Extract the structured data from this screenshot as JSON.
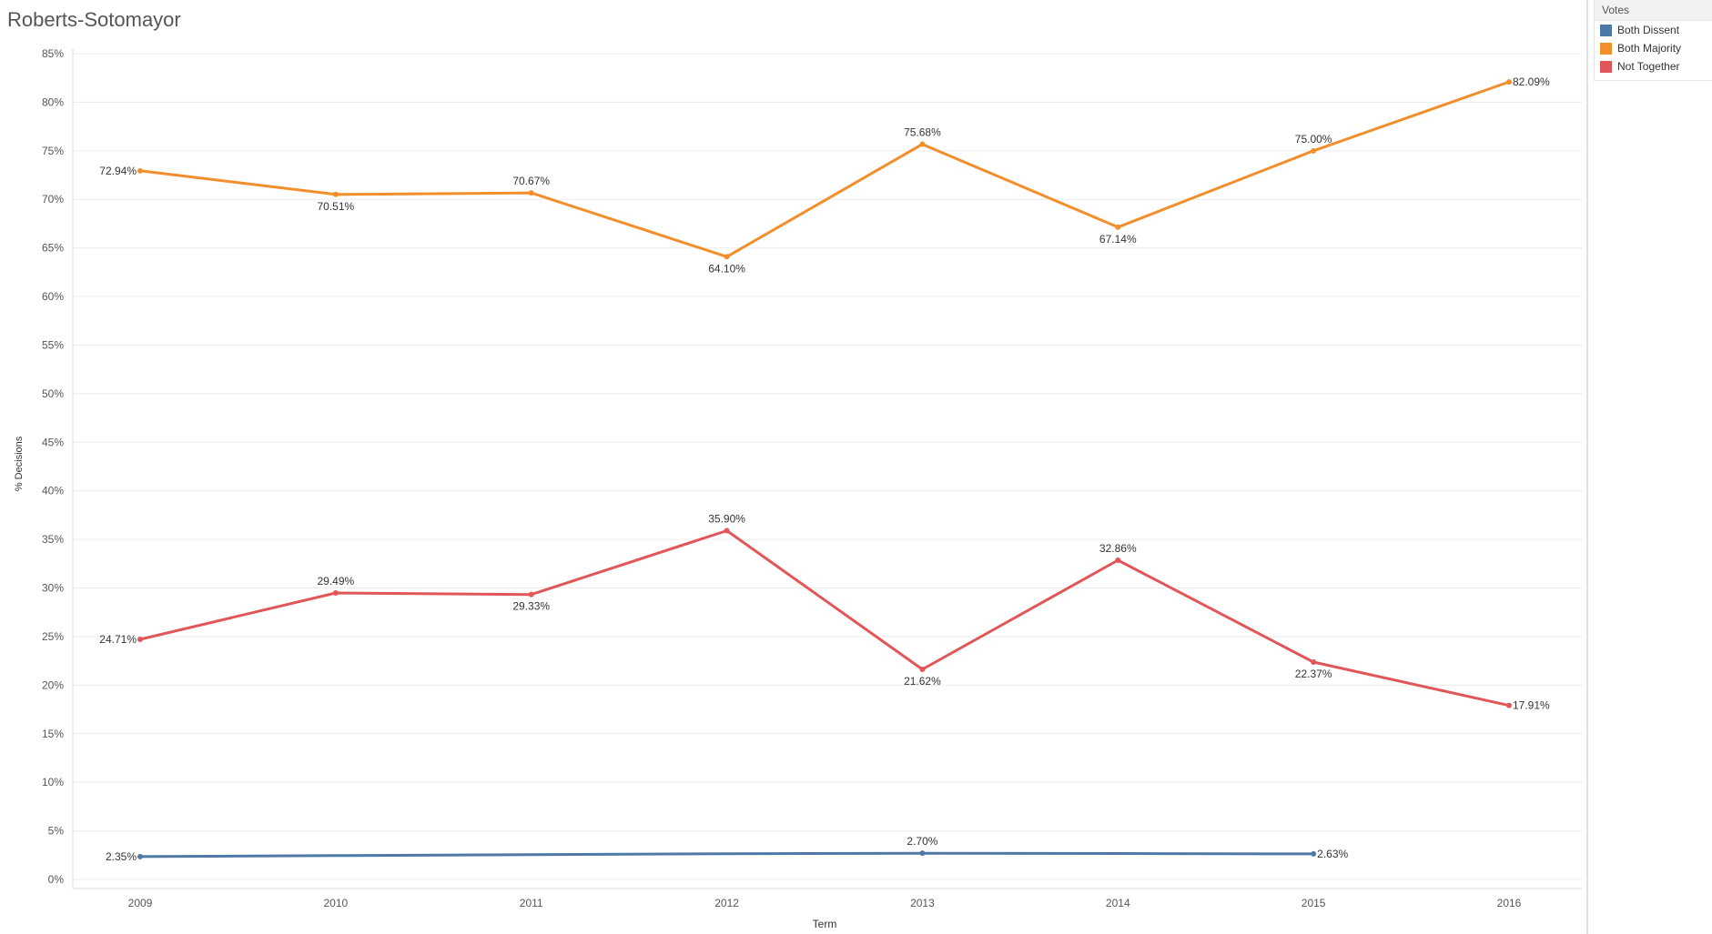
{
  "title": "Roberts-Sotomayor",
  "legend": {
    "title": "Votes",
    "items": [
      {
        "label": "Both Dissent",
        "color": "#4e79a7"
      },
      {
        "label": "Both Majority",
        "color": "#f28e2b"
      },
      {
        "label": "Not Together",
        "color": "#e15759"
      }
    ]
  },
  "chart_data": {
    "type": "line",
    "title": "Roberts-Sotomayor",
    "xlabel": "Term",
    "ylabel": "% Decisions",
    "ylim": [
      0,
      85
    ],
    "yticks": [
      "0%",
      "5%",
      "10%",
      "15%",
      "20%",
      "25%",
      "30%",
      "35%",
      "40%",
      "45%",
      "50%",
      "55%",
      "60%",
      "65%",
      "70%",
      "75%",
      "80%",
      "85%"
    ],
    "categories": [
      "2009",
      "2010",
      "2011",
      "2012",
      "2013",
      "2014",
      "2015",
      "2016"
    ],
    "grid": true,
    "legend_position": "top-right",
    "series": [
      {
        "name": "Both Dissent",
        "color": "#4e79a7",
        "values": [
          2.35,
          2.45,
          2.55,
          2.65,
          2.7,
          2.67,
          2.63,
          null
        ],
        "labels": [
          "2.35%",
          "",
          "",
          "",
          "2.70%",
          "",
          "2.63%",
          ""
        ]
      },
      {
        "name": "Both Majority",
        "color": "#f28e2b",
        "values": [
          72.94,
          70.51,
          70.67,
          64.1,
          75.68,
          67.14,
          75.0,
          82.09
        ],
        "labels": [
          "72.94%",
          "70.51%",
          "70.67%",
          "64.10%",
          "75.68%",
          "67.14%",
          "75.00%",
          "82.09%"
        ]
      },
      {
        "name": "Not Together",
        "color": "#e15759",
        "values": [
          24.71,
          29.49,
          29.33,
          35.9,
          21.62,
          32.86,
          22.37,
          17.91
        ],
        "labels": [
          "24.71%",
          "29.49%",
          "29.33%",
          "35.90%",
          "21.62%",
          "32.86%",
          "22.37%",
          "17.91%"
        ]
      }
    ]
  }
}
